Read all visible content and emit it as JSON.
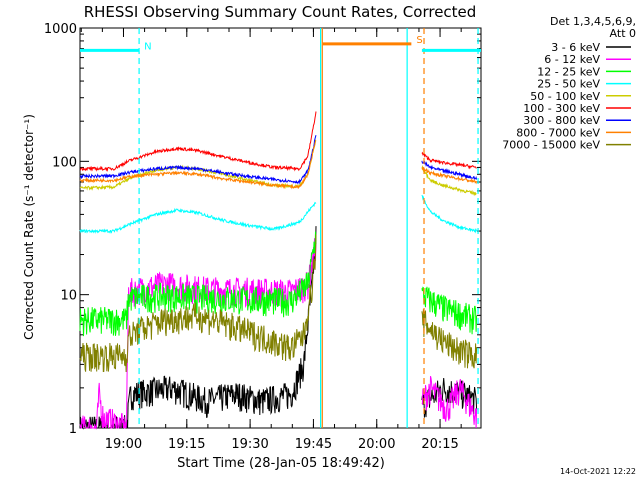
{
  "chart_data": {
    "type": "line",
    "title": "RHESSI Observing Summary Count Rates, Corrected",
    "xlabel": "Start Time (28-Jan-05 18:49:42)",
    "ylabel": "Corrected Count Rate (s⁻¹ detector⁻¹)",
    "y_scale": "log",
    "ylim": [
      1,
      1000
    ],
    "xlim_minutes": [
      0,
      95
    ],
    "x_ticks": [
      {
        "label": "19:00",
        "min": 10.3
      },
      {
        "label": "19:15",
        "min": 25.3
      },
      {
        "label": "19:30",
        "min": 40.3
      },
      {
        "label": "19:45",
        "min": 55.3
      },
      {
        "label": "20:00",
        "min": 70.3
      },
      {
        "label": "20:15",
        "min": 85.3
      }
    ],
    "y_ticks": [
      {
        "label": "1",
        "value": 1
      },
      {
        "label": "10",
        "value": 10
      },
      {
        "label": "100",
        "value": 100
      },
      {
        "label": "1000",
        "value": 1000
      }
    ],
    "legend_header": [
      "Det 1,3,4,5,6,9,",
      "Att 0"
    ],
    "legend_position": "right",
    "series": [
      {
        "name": "3 - 6 keV",
        "color": "#000000",
        "pre": [
          [
            0,
            1
          ],
          [
            11,
            1
          ],
          [
            12,
            1.8
          ],
          [
            22,
            2.0
          ],
          [
            30,
            1.6
          ],
          [
            37,
            1.8
          ],
          [
            43,
            1.6
          ],
          [
            50,
            1.8
          ],
          [
            53,
            3
          ],
          [
            55,
            12
          ],
          [
            56,
            30
          ]
        ],
        "post": [
          [
            81,
            1.5
          ],
          [
            86,
            2.0
          ],
          [
            91,
            1.8
          ],
          [
            94,
            1.6
          ]
        ]
      },
      {
        "name": "6 - 12 keV",
        "color": "#ff00ff",
        "pre": [
          [
            0,
            1
          ],
          [
            4,
            1
          ],
          [
            4.5,
            1.8
          ],
          [
            5.5,
            1.2
          ],
          [
            11,
            1
          ],
          [
            11.5,
            10.5
          ],
          [
            14,
            11
          ],
          [
            20,
            12
          ],
          [
            30,
            11
          ],
          [
            40,
            10.8
          ],
          [
            50,
            10.5
          ],
          [
            54,
            12
          ],
          [
            56,
            25
          ]
        ],
        "post": [
          [
            81,
            1.6
          ],
          [
            83,
            2.0
          ],
          [
            87,
            1.4
          ],
          [
            90,
            2.0
          ],
          [
            94,
            1.2
          ]
        ]
      },
      {
        "name": "12 - 25 keV",
        "color": "#00ff00",
        "pre": [
          [
            0,
            6.5
          ],
          [
            11,
            6.5
          ],
          [
            11.5,
            9.5
          ],
          [
            20,
            9.8
          ],
          [
            30,
            9.5
          ],
          [
            40,
            9.2
          ],
          [
            50,
            9.0
          ],
          [
            54,
            12
          ],
          [
            56,
            30
          ]
        ],
        "post": [
          [
            81,
            10
          ],
          [
            86,
            8
          ],
          [
            94,
            6.5
          ]
        ]
      },
      {
        "name": "25 - 50 keV",
        "color": "#00ffff",
        "pre": [
          [
            0,
            30
          ],
          [
            8,
            30
          ],
          [
            12,
            34
          ],
          [
            18,
            40
          ],
          [
            23,
            43
          ],
          [
            28,
            41
          ],
          [
            34,
            36
          ],
          [
            40,
            33
          ],
          [
            46,
            31
          ],
          [
            52,
            35
          ],
          [
            56,
            50
          ]
        ],
        "post": [
          [
            81,
            55
          ],
          [
            83,
            42
          ],
          [
            86,
            36
          ],
          [
            90,
            32
          ],
          [
            94,
            30
          ]
        ]
      },
      {
        "name": "50 - 100 keV",
        "color": "#cccc00",
        "pre": [
          [
            0,
            63
          ],
          [
            8,
            64
          ],
          [
            12,
            75
          ],
          [
            18,
            86
          ],
          [
            23,
            90
          ],
          [
            28,
            88
          ],
          [
            34,
            80
          ],
          [
            40,
            72
          ],
          [
            46,
            66
          ],
          [
            52,
            65
          ],
          [
            54,
            80
          ],
          [
            56,
            150
          ]
        ],
        "post": [
          [
            81,
            90
          ],
          [
            83,
            72
          ],
          [
            86,
            66
          ],
          [
            90,
            61
          ],
          [
            94,
            57
          ]
        ]
      },
      {
        "name": "100 - 300 keV",
        "color": "#ff0000",
        "pre": [
          [
            0,
            88
          ],
          [
            8,
            88
          ],
          [
            12,
            102
          ],
          [
            18,
            118
          ],
          [
            23,
            125
          ],
          [
            28,
            120
          ],
          [
            34,
            108
          ],
          [
            40,
            98
          ],
          [
            46,
            90
          ],
          [
            52,
            88
          ],
          [
            54,
            110
          ],
          [
            56,
            240
          ]
        ],
        "post": [
          [
            81,
            115
          ],
          [
            83,
            102
          ],
          [
            86,
            98
          ],
          [
            90,
            94
          ],
          [
            94,
            90
          ]
        ]
      },
      {
        "name": "300 - 800 keV",
        "color": "#0000ff",
        "pre": [
          [
            0,
            77
          ],
          [
            8,
            78
          ],
          [
            12,
            83
          ],
          [
            18,
            88
          ],
          [
            23,
            90
          ],
          [
            28,
            88
          ],
          [
            34,
            82
          ],
          [
            40,
            77
          ],
          [
            46,
            73
          ],
          [
            52,
            70
          ],
          [
            54,
            85
          ],
          [
            56,
            160
          ]
        ],
        "post": [
          [
            81,
            100
          ],
          [
            83,
            90
          ],
          [
            86,
            85
          ],
          [
            90,
            80
          ],
          [
            94,
            74
          ]
        ]
      },
      {
        "name": "800 - 7000 keV",
        "color": "#ff8000",
        "pre": [
          [
            0,
            72
          ],
          [
            8,
            72
          ],
          [
            12,
            77
          ],
          [
            18,
            80
          ],
          [
            23,
            82
          ],
          [
            28,
            80
          ],
          [
            34,
            74
          ],
          [
            40,
            70
          ],
          [
            46,
            66
          ],
          [
            52,
            64
          ],
          [
            54,
            80
          ],
          [
            56,
            150
          ]
        ],
        "post": [
          [
            81,
            90
          ],
          [
            83,
            82
          ],
          [
            86,
            78
          ],
          [
            90,
            74
          ],
          [
            94,
            70
          ]
        ]
      },
      {
        "name": "7000 - 15000 keV",
        "color": "#808000",
        "pre": [
          [
            0,
            3.5
          ],
          [
            11,
            3.5
          ],
          [
            11.5,
            4.8
          ],
          [
            14,
            5.5
          ],
          [
            20,
            6.5
          ],
          [
            28,
            7.0
          ],
          [
            35,
            6.0
          ],
          [
            42,
            5.0
          ],
          [
            50,
            4.0
          ],
          [
            53,
            5
          ],
          [
            55,
            12
          ],
          [
            56,
            25
          ]
        ],
        "post": [
          [
            81,
            6.5
          ],
          [
            86,
            4.5
          ],
          [
            90,
            3.8
          ],
          [
            94,
            3.5
          ]
        ]
      }
    ],
    "flags": [
      {
        "label": "N",
        "color": "#00ffff",
        "x_start": 0,
        "x_end": 14,
        "y": 680
      },
      {
        "label": "S",
        "color": "#ff8000",
        "x_start": 57.5,
        "x_end": 78.5,
        "y": 760
      },
      {
        "label": "",
        "color": "#00ffff",
        "x_start": 81,
        "x_end": 95,
        "y": 680
      }
    ],
    "vlines": [
      {
        "x": 14,
        "color": "#00ffff",
        "dash": true
      },
      {
        "x": 57.0,
        "color": "#00ffff",
        "dash": false
      },
      {
        "x": 57.4,
        "color": "#ff8000",
        "dash": false
      },
      {
        "x": 77.5,
        "color": "#00ffff",
        "dash": false
      },
      {
        "x": 81.5,
        "color": "#ff8000",
        "dash": true
      },
      {
        "x": 94.3,
        "color": "#00ffff",
        "dash": true
      }
    ],
    "footer_timestamp": "14-Oct-2021 12:22"
  }
}
